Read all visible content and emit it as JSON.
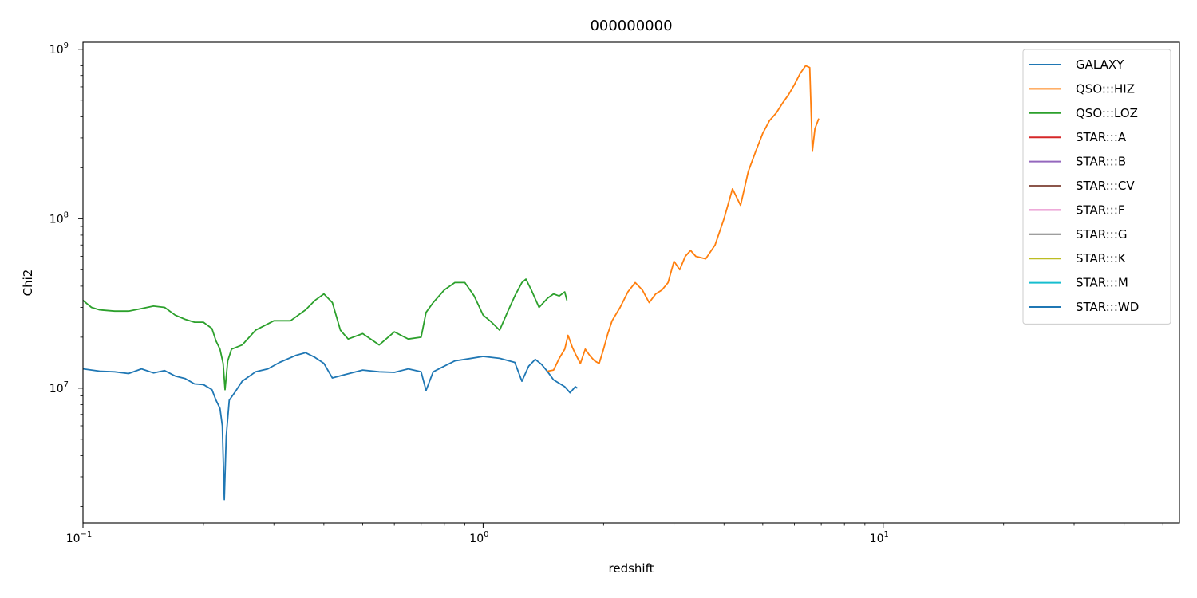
{
  "chart_data": {
    "type": "line",
    "title": "000000000",
    "xlabel": "redshift",
    "ylabel": "Chi2",
    "xscale": "log",
    "yscale": "log",
    "xlim": [
      0.1,
      55
    ],
    "ylim": [
      1600000,
      1100000000
    ],
    "grid": false,
    "legend_position": "top-right",
    "x_ticks": [
      {
        "value": 0.1,
        "base": "10",
        "exp": "−1"
      },
      {
        "value": 1,
        "base": "10",
        "exp": "0"
      },
      {
        "value": 10,
        "base": "10",
        "exp": "1"
      }
    ],
    "y_ticks": [
      {
        "value": 10000000,
        "base": "10",
        "exp": "7"
      },
      {
        "value": 100000000,
        "base": "10",
        "exp": "8"
      },
      {
        "value": 1000000000,
        "base": "10",
        "exp": "9"
      }
    ],
    "series": [
      {
        "name": "GALAXY",
        "color": "#1f77b4",
        "points": [
          [
            0.1,
            13000000
          ],
          [
            0.11,
            12600000
          ],
          [
            0.12,
            12500000
          ],
          [
            0.13,
            12200000
          ],
          [
            0.14,
            13000000
          ],
          [
            0.15,
            12300000
          ],
          [
            0.16,
            12700000
          ],
          [
            0.17,
            11800000
          ],
          [
            0.18,
            11400000
          ],
          [
            0.19,
            10600000
          ],
          [
            0.2,
            10500000
          ],
          [
            0.21,
            9800000
          ],
          [
            0.215,
            8500000
          ],
          [
            0.22,
            7600000
          ],
          [
            0.223,
            6000000
          ],
          [
            0.2255,
            2200000
          ],
          [
            0.228,
            5200000
          ],
          [
            0.232,
            8500000
          ],
          [
            0.24,
            9500000
          ],
          [
            0.25,
            11000000
          ],
          [
            0.27,
            12500000
          ],
          [
            0.29,
            13000000
          ],
          [
            0.31,
            14200000
          ],
          [
            0.34,
            15600000
          ],
          [
            0.36,
            16200000
          ],
          [
            0.38,
            15200000
          ],
          [
            0.4,
            14000000
          ],
          [
            0.42,
            11500000
          ],
          [
            0.45,
            12000000
          ],
          [
            0.5,
            12800000
          ],
          [
            0.55,
            12500000
          ],
          [
            0.6,
            12400000
          ],
          [
            0.65,
            13000000
          ],
          [
            0.7,
            12500000
          ],
          [
            0.72,
            9700000
          ],
          [
            0.75,
            12500000
          ],
          [
            0.8,
            13500000
          ],
          [
            0.85,
            14500000
          ],
          [
            0.9,
            14800000
          ],
          [
            1.0,
            15400000
          ],
          [
            1.1,
            15000000
          ],
          [
            1.2,
            14200000
          ],
          [
            1.25,
            11000000
          ],
          [
            1.3,
            13500000
          ],
          [
            1.35,
            14800000
          ],
          [
            1.4,
            13800000
          ],
          [
            1.45,
            12500000
          ],
          [
            1.5,
            11200000
          ],
          [
            1.6,
            10200000
          ],
          [
            1.65,
            9400000
          ],
          [
            1.7,
            10200000
          ],
          [
            1.72,
            10000000
          ]
        ]
      },
      {
        "name": "QSO:::HIZ",
        "color": "#ff7f0e",
        "points": [
          [
            1.45,
            12600000
          ],
          [
            1.5,
            12800000
          ],
          [
            1.55,
            15000000
          ],
          [
            1.6,
            17000000
          ],
          [
            1.63,
            20500000
          ],
          [
            1.67,
            17500000
          ],
          [
            1.7,
            16000000
          ],
          [
            1.75,
            14000000
          ],
          [
            1.8,
            17000000
          ],
          [
            1.85,
            15500000
          ],
          [
            1.9,
            14500000
          ],
          [
            1.95,
            14000000
          ],
          [
            2.0,
            17000000
          ],
          [
            2.05,
            21000000
          ],
          [
            2.1,
            25000000
          ],
          [
            2.2,
            30000000
          ],
          [
            2.3,
            37000000
          ],
          [
            2.4,
            42000000
          ],
          [
            2.5,
            38000000
          ],
          [
            2.6,
            32000000
          ],
          [
            2.7,
            36000000
          ],
          [
            2.8,
            38000000
          ],
          [
            2.9,
            42000000
          ],
          [
            3.0,
            56000000
          ],
          [
            3.1,
            50000000
          ],
          [
            3.2,
            60000000
          ],
          [
            3.3,
            65000000
          ],
          [
            3.4,
            60000000
          ],
          [
            3.6,
            58000000
          ],
          [
            3.8,
            70000000
          ],
          [
            4.0,
            100000000
          ],
          [
            4.2,
            150000000
          ],
          [
            4.4,
            120000000
          ],
          [
            4.6,
            190000000
          ],
          [
            4.8,
            250000000
          ],
          [
            5.0,
            320000000
          ],
          [
            5.2,
            380000000
          ],
          [
            5.4,
            420000000
          ],
          [
            5.6,
            480000000
          ],
          [
            5.8,
            540000000
          ],
          [
            6.0,
            620000000
          ],
          [
            6.2,
            720000000
          ],
          [
            6.4,
            800000000
          ],
          [
            6.55,
            780000000
          ],
          [
            6.65,
            250000000
          ],
          [
            6.75,
            340000000
          ],
          [
            6.9,
            390000000
          ]
        ]
      },
      {
        "name": "QSO:::LOZ",
        "color": "#2ca02c",
        "points": [
          [
            0.1,
            33000000
          ],
          [
            0.105,
            30000000
          ],
          [
            0.11,
            29000000
          ],
          [
            0.12,
            28500000
          ],
          [
            0.13,
            28500000
          ],
          [
            0.14,
            29500000
          ],
          [
            0.15,
            30500000
          ],
          [
            0.16,
            30000000
          ],
          [
            0.17,
            27000000
          ],
          [
            0.18,
            25500000
          ],
          [
            0.19,
            24500000
          ],
          [
            0.2,
            24500000
          ],
          [
            0.21,
            22500000
          ],
          [
            0.215,
            19000000
          ],
          [
            0.22,
            17000000
          ],
          [
            0.224,
            14000000
          ],
          [
            0.2265,
            9800000
          ],
          [
            0.23,
            14500000
          ],
          [
            0.235,
            17000000
          ],
          [
            0.25,
            18000000
          ],
          [
            0.27,
            22000000
          ],
          [
            0.3,
            25000000
          ],
          [
            0.33,
            25000000
          ],
          [
            0.36,
            29000000
          ],
          [
            0.38,
            33000000
          ],
          [
            0.4,
            36000000
          ],
          [
            0.42,
            32000000
          ],
          [
            0.44,
            22000000
          ],
          [
            0.46,
            19500000
          ],
          [
            0.5,
            21000000
          ],
          [
            0.55,
            18000000
          ],
          [
            0.6,
            21500000
          ],
          [
            0.65,
            19500000
          ],
          [
            0.7,
            20000000
          ],
          [
            0.72,
            28000000
          ],
          [
            0.75,
            32000000
          ],
          [
            0.8,
            38000000
          ],
          [
            0.85,
            42000000
          ],
          [
            0.9,
            42000000
          ],
          [
            0.95,
            35000000
          ],
          [
            1.0,
            27000000
          ],
          [
            1.05,
            24500000
          ],
          [
            1.1,
            22000000
          ],
          [
            1.15,
            28000000
          ],
          [
            1.2,
            35000000
          ],
          [
            1.25,
            42000000
          ],
          [
            1.28,
            44000000
          ],
          [
            1.32,
            38000000
          ],
          [
            1.38,
            30000000
          ],
          [
            1.45,
            34000000
          ],
          [
            1.5,
            36000000
          ],
          [
            1.55,
            35000000
          ],
          [
            1.6,
            37000000
          ],
          [
            1.62,
            33000000
          ]
        ]
      },
      {
        "name": "STAR:::A",
        "color": "#d62728",
        "points": []
      },
      {
        "name": "STAR:::B",
        "color": "#9467bd",
        "points": []
      },
      {
        "name": "STAR:::CV",
        "color": "#8c564b",
        "points": []
      },
      {
        "name": "STAR:::F",
        "color": "#e377c2",
        "points": []
      },
      {
        "name": "STAR:::G",
        "color": "#7f7f7f",
        "points": []
      },
      {
        "name": "STAR:::K",
        "color": "#bcbd22",
        "points": []
      },
      {
        "name": "STAR:::M",
        "color": "#17becf",
        "points": []
      },
      {
        "name": "STAR:::WD",
        "color": "#1f77b4",
        "points": []
      }
    ]
  }
}
